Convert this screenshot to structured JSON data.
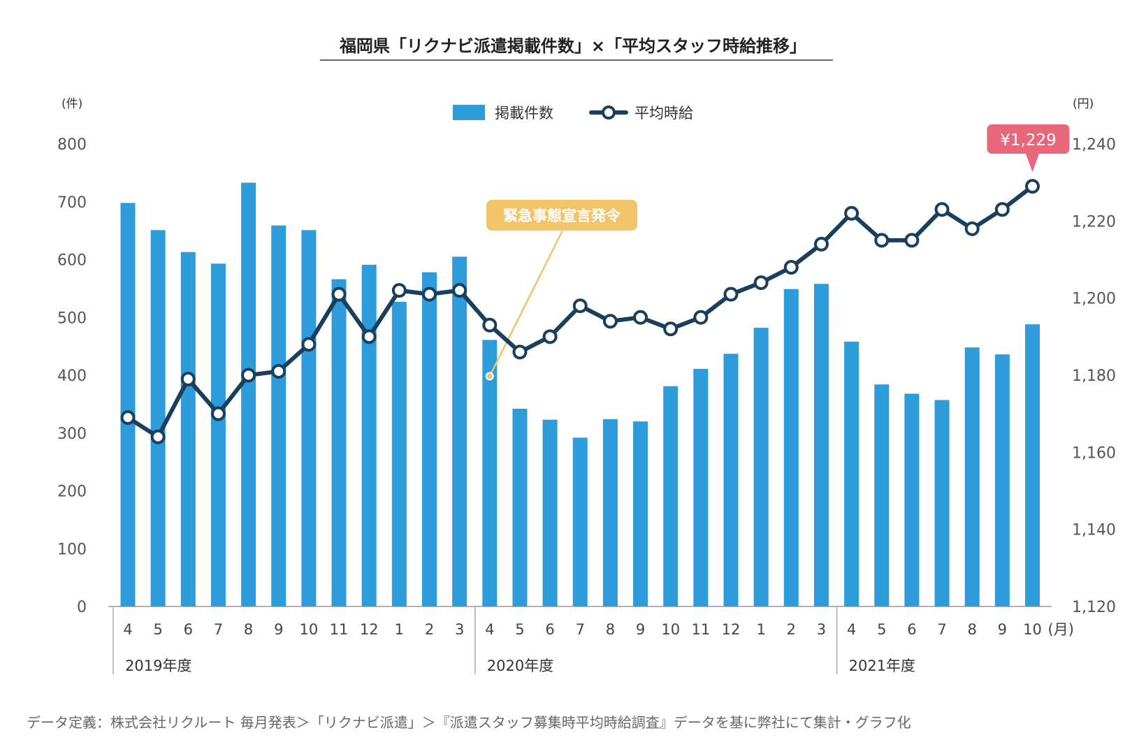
{
  "chart_data": {
    "type": "bar+line",
    "title": "福岡県「リクナビ派遣掲載件数」×「平均スタッフ時給推移」",
    "left_axis": {
      "unit": "(件)",
      "min": 0,
      "max": 800,
      "ticks": [
        "0",
        "100",
        "200",
        "300",
        "400",
        "500",
        "600",
        "700",
        "800"
      ]
    },
    "right_axis": {
      "unit": "(円)",
      "min": 1120,
      "max": 1240,
      "ticks": [
        "1,120",
        "1,140",
        "1,160",
        "1,180",
        "1,200",
        "1,220",
        "1,240"
      ]
    },
    "x_unit": "(月)",
    "categories": [
      "4",
      "5",
      "6",
      "7",
      "8",
      "9",
      "10",
      "11",
      "12",
      "1",
      "2",
      "3",
      "4",
      "5",
      "6",
      "7",
      "8",
      "9",
      "10",
      "11",
      "12",
      "1",
      "2",
      "3",
      "4",
      "5",
      "6",
      "7",
      "8",
      "9",
      "10"
    ],
    "fiscal_years": [
      {
        "label": "2019年度",
        "start_index": 0
      },
      {
        "label": "2020年度",
        "start_index": 12
      },
      {
        "label": "2021年度",
        "start_index": 24
      }
    ],
    "series": [
      {
        "name": "掲載件数",
        "type": "bar",
        "axis": "left",
        "color": "#2e9bdb",
        "values": [
          698,
          651,
          613,
          593,
          733,
          659,
          651,
          566,
          591,
          527,
          578,
          605,
          461,
          342,
          323,
          292,
          324,
          320,
          381,
          411,
          437,
          482,
          549,
          558,
          458,
          384,
          368,
          357,
          448,
          436,
          488
        ]
      },
      {
        "name": "平均時給",
        "type": "line",
        "axis": "right",
        "color": "#1a3f5c",
        "values": [
          1169,
          1164,
          1179,
          1170,
          1180,
          1181,
          1188,
          1201,
          1190,
          1202,
          1201,
          1202,
          1193,
          1186,
          1190,
          1198,
          1194,
          1195,
          1192,
          1195,
          1201,
          1204,
          1208,
          1214,
          1222,
          1215,
          1215,
          1223,
          1218,
          1223,
          1229
        ]
      }
    ],
    "annotations": [
      {
        "text": "緊急事態宣言発令",
        "index": 12,
        "color": "#f2c46a"
      },
      {
        "text": "¥1,229",
        "index": 30,
        "color": "#e8677a"
      }
    ],
    "legend": {
      "position": "top-center"
    },
    "grid": false
  },
  "footnote": "データ定義：株式会社リクルート 毎月発表＞「リクナビ派遣」＞『派遣スタッフ募集時平均時給調査』データを基に弊社にて集計・グラフ化"
}
